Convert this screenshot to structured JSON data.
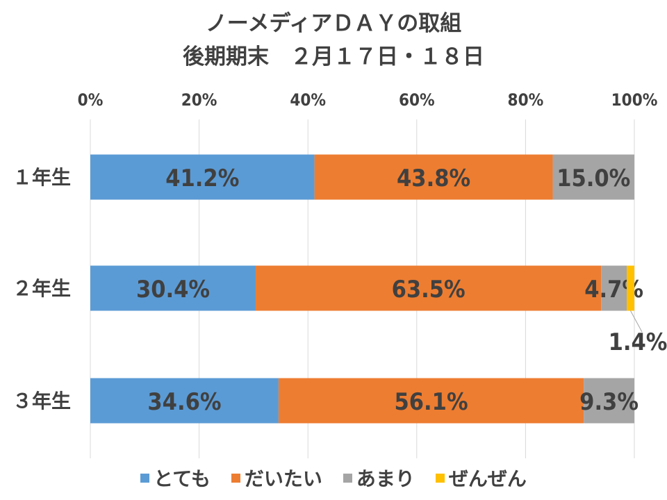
{
  "chart_data": {
    "type": "bar",
    "orientation": "horizontal",
    "stacked": true,
    "title": "ノーメディアＤＡＹの取組",
    "subtitle": "後期期末　２月１７日・１８日",
    "categories": [
      "１年生",
      "２年生",
      "３年生"
    ],
    "series": [
      {
        "name": "とても",
        "color": "#5B9BD5",
        "values": [
          41.2,
          30.4,
          34.6
        ]
      },
      {
        "name": "だいたい",
        "color": "#ED7D31",
        "values": [
          43.8,
          63.5,
          56.1
        ]
      },
      {
        "name": "あまり",
        "color": "#A5A5A5",
        "values": [
          15.0,
          4.7,
          9.3
        ]
      },
      {
        "name": "ぜんぜん",
        "color": "#FFC000",
        "values": [
          0,
          1.4,
          0
        ]
      }
    ],
    "data_labels": [
      [
        "41.2%",
        "43.8%",
        "15.0%",
        null
      ],
      [
        "30.4%",
        "63.5%",
        "4.7%",
        "1.4%"
      ],
      [
        "34.6%",
        "56.1%",
        "9.3%",
        null
      ]
    ],
    "x_ticks": [
      "0%",
      "20%",
      "40%",
      "60%",
      "80%",
      "100%"
    ],
    "xlim": [
      0,
      100
    ],
    "axis_position": "top",
    "grid": true,
    "legend_position": "bottom"
  }
}
